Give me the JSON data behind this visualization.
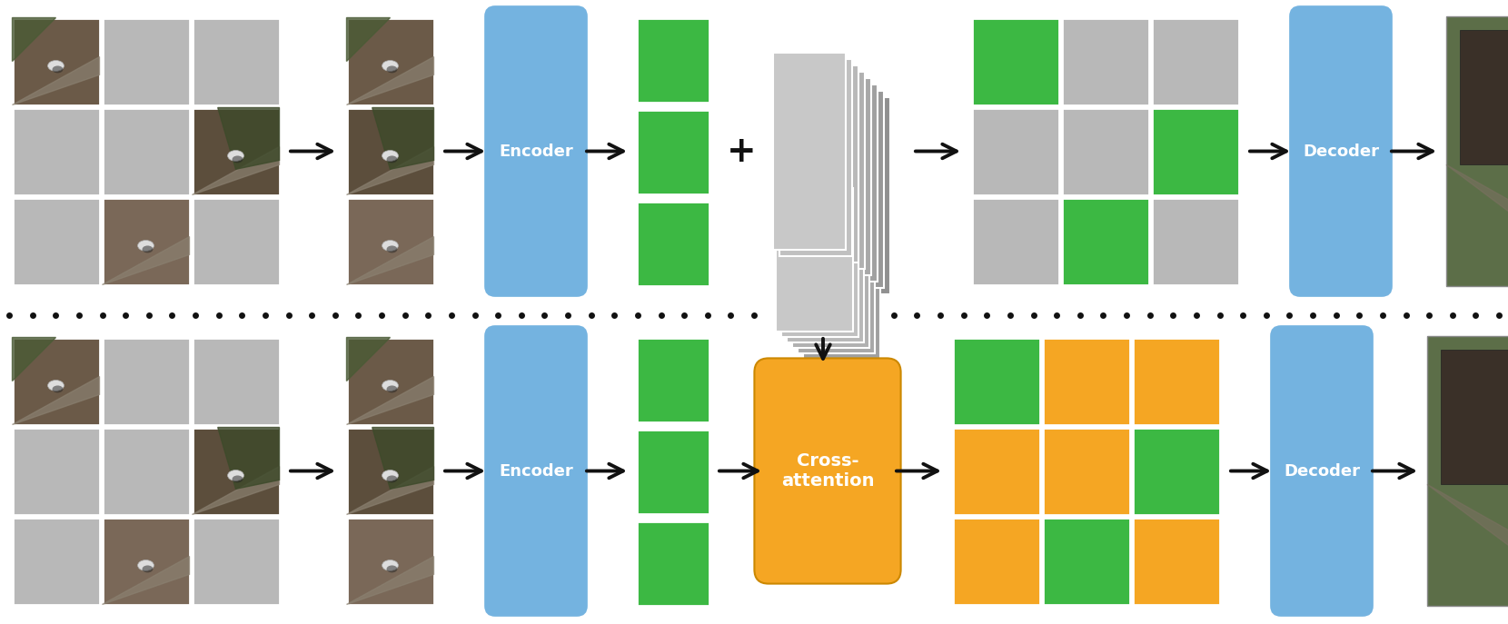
{
  "bg_color": "#ffffff",
  "green": "#3cb843",
  "gray_tile": "#b8b8b8",
  "blue_box": "#74b3e0",
  "orange_box": "#f5a623",
  "arrow_color": "#111111",
  "dot_color": "#111111",
  "plus_color": "#111111",
  "encoder_text": "Encoder",
  "decoder_text": "Decoder",
  "cross_attn_text": "Cross-\nattention",
  "figsize": [
    16.6,
    6.87
  ],
  "top_result_pattern": [
    [
      "G",
      "g",
      "g"
    ],
    [
      "g",
      "g",
      "G"
    ],
    [
      "g",
      "G",
      "g"
    ]
  ],
  "bot_result_pattern": [
    [
      "G",
      "Y",
      "Y"
    ],
    [
      "Y",
      "Y",
      "G"
    ],
    [
      "Y",
      "G",
      "Y"
    ]
  ],
  "input_pattern1": [
    [
      "I",
      "g",
      "g"
    ],
    [
      "g",
      "g",
      "I"
    ],
    [
      "g",
      "I",
      "g"
    ]
  ],
  "input_pattern2": [
    [
      "I"
    ],
    [
      "I"
    ],
    [
      "I"
    ]
  ]
}
